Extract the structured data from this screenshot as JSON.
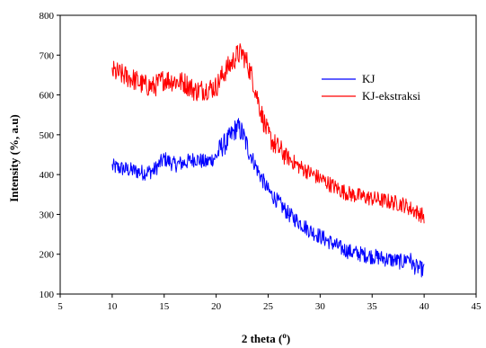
{
  "chart_data": {
    "type": "line",
    "xlabel": "2 theta (",
    "xlabel_unit": "o",
    "xlabel_close": ")",
    "ylabel": "Intensity (%, a.u)",
    "xlim": [
      5,
      45
    ],
    "ylim": [
      100,
      800
    ],
    "xticks": [
      "5",
      "10",
      "15",
      "20",
      "25",
      "30",
      "35",
      "40",
      "45"
    ],
    "yticks": [
      "100",
      "200",
      "300",
      "400",
      "500",
      "600",
      "700",
      "800"
    ],
    "grid": false,
    "legend_position": "right",
    "series": [
      {
        "name": "KJ",
        "color": "#0000ff",
        "x": [
          10,
          11,
          12,
          13,
          14,
          15,
          16,
          17,
          18,
          19,
          20,
          20.5,
          21,
          21.5,
          22,
          22.5,
          23,
          23.5,
          24,
          24.5,
          25,
          25.5,
          26,
          27,
          28,
          29,
          30,
          31,
          32,
          33,
          34,
          35,
          36,
          37,
          38,
          38.5,
          39,
          40
        ],
        "y": [
          420,
          415,
          410,
          405,
          410,
          440,
          425,
          430,
          440,
          430,
          445,
          470,
          480,
          500,
          520,
          505,
          470,
          440,
          410,
          385,
          360,
          345,
          330,
          300,
          280,
          260,
          245,
          230,
          215,
          205,
          200,
          195,
          190,
          185,
          180,
          195,
          170,
          160
        ]
      },
      {
        "name": "KJ-ekstraksi",
        "color": "#ff0000",
        "x": [
          10,
          11,
          12,
          13,
          14,
          15,
          16,
          17,
          18,
          19,
          20,
          20.5,
          21,
          21.5,
          22,
          22.5,
          23,
          23.5,
          24,
          24.5,
          25,
          25.5,
          26,
          27,
          28,
          29,
          30,
          31,
          32,
          33,
          34,
          35,
          36,
          37,
          38,
          39,
          40
        ],
        "y": [
          660,
          650,
          640,
          625,
          620,
          640,
          635,
          630,
          610,
          615,
          620,
          645,
          665,
          680,
          700,
          705,
          680,
          640,
          590,
          540,
          500,
          480,
          465,
          440,
          420,
          405,
          390,
          375,
          360,
          350,
          345,
          340,
          335,
          330,
          325,
          310,
          295
        ]
      }
    ]
  }
}
